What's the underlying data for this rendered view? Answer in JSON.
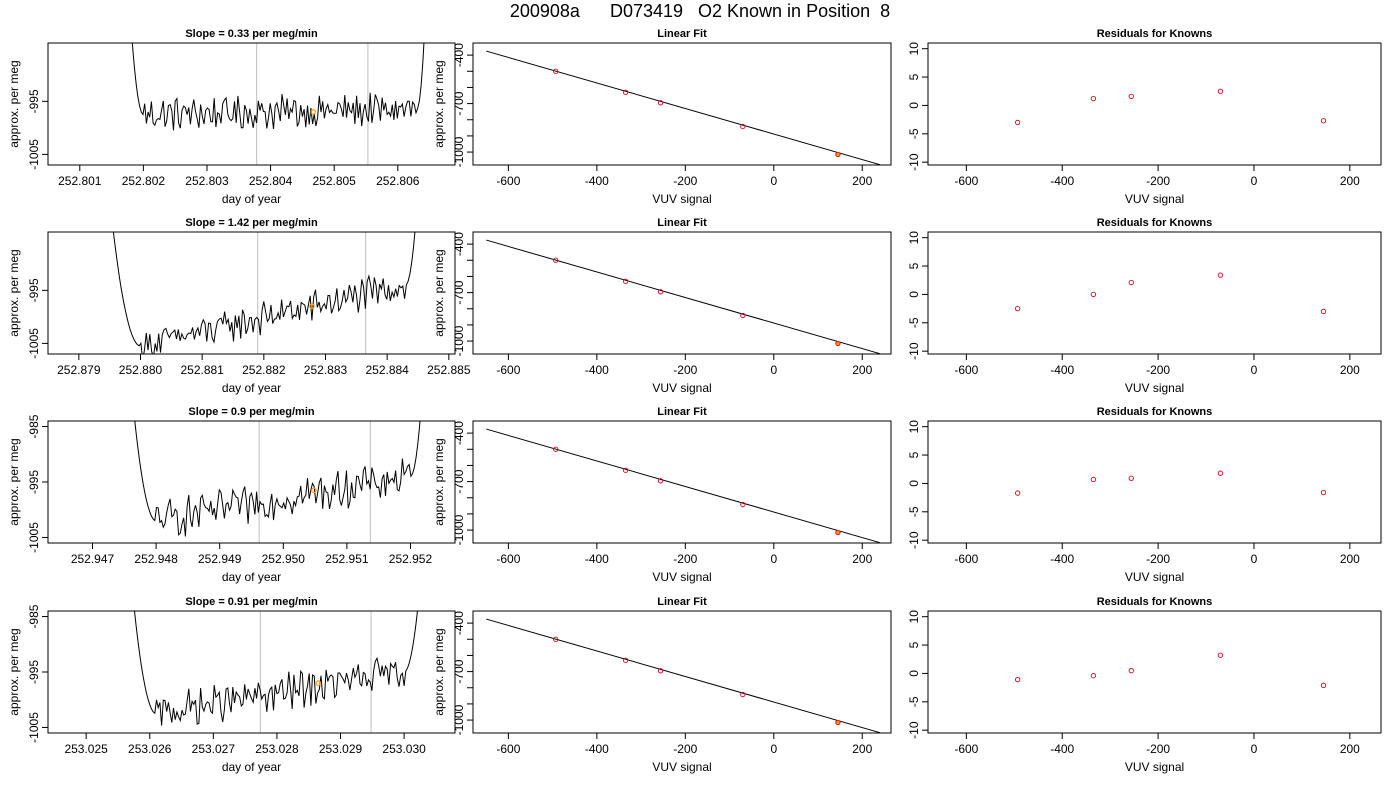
{
  "figure": {
    "title": "200908a      D073419   O2 Known in Position  8",
    "colors": {
      "trace": "#000000",
      "refline": "#c8c8c8",
      "point": "#e0001b",
      "highlight": "#ff9900",
      "axis": "#000000"
    }
  },
  "chart_data": [
    {
      "type": "line",
      "panel": "timeseries",
      "row": 0,
      "title": "Slope =  0.33  per meg/min",
      "xlabel": "day of year",
      "ylabel": "approx. per meg",
      "xlim": [
        252.8005,
        252.8069
      ],
      "ylim": [
        -1007,
        -984
      ],
      "xticks": [
        "252.801",
        "252.802",
        "252.803",
        "252.804",
        "252.805",
        "252.806"
      ],
      "xtick_values": [
        252.801,
        252.802,
        252.803,
        252.804,
        252.805,
        252.806
      ],
      "yticks": [
        "-995",
        "-1005"
      ],
      "ytick_values": [
        -995,
        -1005
      ],
      "trace_start": 252.8017,
      "trace_end": 252.8065,
      "flat_start": 252.802,
      "flat_end": 252.8063,
      "baseline_start": -997.5,
      "baseline_end": -996.5,
      "noise": 1.5,
      "vlines": [
        252.80378,
        252.80553
      ],
      "marker": {
        "x": 252.80467,
        "y": -997.0
      }
    },
    {
      "type": "scatter",
      "panel": "linear-fit",
      "row": 0,
      "title": "Linear Fit",
      "xlabel": "VUV signal",
      "ylabel": "approx. per meg",
      "xlim": [
        -680,
        265
      ],
      "ylim": [
        -1080,
        -325
      ],
      "xticks": [
        "-600",
        "-400",
        "-200",
        "0",
        "200"
      ],
      "xtick_values": [
        -600,
        -400,
        -200,
        0,
        200
      ],
      "yticks": [
        "-400",
        "-700",
        "-1000"
      ],
      "ytick_values": [
        -400,
        -700,
        -1000
      ],
      "points": [
        [
          -493,
          -500
        ],
        [
          -335,
          -630
        ],
        [
          -256,
          -695
        ],
        [
          -70,
          -842
        ],
        [
          145,
          -1015
        ]
      ],
      "highlight_index": 4,
      "fit_line": [
        [
          -650,
          -375
        ],
        [
          240,
          -1078
        ]
      ]
    },
    {
      "type": "scatter",
      "panel": "residuals",
      "row": 0,
      "title": "Residuals for Knowns",
      "xlabel": "VUV signal",
      "ylabel": "",
      "xlim": [
        -680,
        265
      ],
      "ylim": [
        -10.5,
        11
      ],
      "xticks": [
        "-600",
        "-400",
        "-200",
        "0",
        "200"
      ],
      "xtick_values": [
        -600,
        -400,
        -200,
        0,
        200
      ],
      "yticks": [
        "10",
        "5",
        "0",
        "-5",
        "-10"
      ],
      "ytick_values": [
        10,
        5,
        0,
        -5,
        -10
      ],
      "points": [
        [
          -493,
          -3.0
        ],
        [
          -335,
          1.2
        ],
        [
          -256,
          1.6
        ],
        [
          -70,
          2.5
        ],
        [
          145,
          -2.7
        ]
      ]
    },
    {
      "type": "line",
      "panel": "timeseries",
      "row": 1,
      "title": "Slope =  1.42  per meg/min",
      "xlabel": "day of year",
      "ylabel": "approx. per meg",
      "xlim": [
        252.8785,
        252.8851
      ],
      "ylim": [
        -1007,
        -984
      ],
      "xticks": [
        "252.879",
        "252.880",
        "252.881",
        "252.882",
        "252.883",
        "252.884",
        "252.885"
      ],
      "xtick_values": [
        252.879,
        252.88,
        252.881,
        252.882,
        252.883,
        252.884,
        252.885
      ],
      "yticks": [
        "-995",
        "-1005"
      ],
      "ytick_values": [
        -995,
        -1005
      ],
      "trace_start": 252.8794,
      "trace_end": 252.8846,
      "flat_start": 252.88,
      "flat_end": 252.8843,
      "baseline_start": -1005.5,
      "baseline_end": -994.0,
      "noise": 1.4,
      "vlines": [
        252.8819,
        252.88365
      ],
      "marker": {
        "x": 252.88278,
        "y": -998.0
      }
    },
    {
      "type": "scatter",
      "panel": "linear-fit",
      "row": 1,
      "title": "Linear Fit",
      "xlabel": "VUV signal",
      "ylabel": "approx. per meg",
      "xlim": [
        -680,
        265
      ],
      "ylim": [
        -1080,
        -325
      ],
      "xticks": [
        "-600",
        "-400",
        "-200",
        "0",
        "200"
      ],
      "xtick_values": [
        -600,
        -400,
        -200,
        0,
        200
      ],
      "yticks": [
        "-400",
        "-700",
        "-1000"
      ],
      "ytick_values": [
        -400,
        -700,
        -1000
      ],
      "points": [
        [
          -493,
          -500
        ],
        [
          -335,
          -630
        ],
        [
          -256,
          -695
        ],
        [
          -70,
          -842
        ],
        [
          145,
          -1015
        ]
      ],
      "highlight_index": 4,
      "fit_line": [
        [
          -650,
          -375
        ],
        [
          240,
          -1078
        ]
      ]
    },
    {
      "type": "scatter",
      "panel": "residuals",
      "row": 1,
      "title": "Residuals for Knowns",
      "xlabel": "VUV signal",
      "ylabel": "",
      "xlim": [
        -680,
        265
      ],
      "ylim": [
        -10.5,
        11
      ],
      "xticks": [
        "-600",
        "-400",
        "-200",
        "0",
        "200"
      ],
      "xtick_values": [
        -600,
        -400,
        -200,
        0,
        200
      ],
      "yticks": [
        "10",
        "5",
        "0",
        "-5",
        "-10"
      ],
      "ytick_values": [
        10,
        5,
        0,
        -5,
        -10
      ],
      "points": [
        [
          -493,
          -2.5
        ],
        [
          -335,
          0.0
        ],
        [
          -256,
          2.1
        ],
        [
          -70,
          3.4
        ],
        [
          145,
          -3.0
        ]
      ]
    },
    {
      "type": "line",
      "panel": "timeseries",
      "row": 2,
      "title": "Slope =  0.9  per meg/min",
      "xlabel": "day of year",
      "ylabel": "approx. per meg",
      "xlim": [
        252.9463,
        252.9527
      ],
      "ylim": [
        -1006,
        -984
      ],
      "xticks": [
        "252.947",
        "252.948",
        "252.949",
        "252.950",
        "252.951",
        "252.952"
      ],
      "xtick_values": [
        252.947,
        252.948,
        252.949,
        252.95,
        252.951,
        252.952
      ],
      "yticks": [
        "-985",
        "-995",
        "-1005"
      ],
      "ytick_values": [
        -985,
        -995,
        -1005
      ],
      "trace_start": 252.9475,
      "trace_end": 252.9523,
      "flat_start": 252.948,
      "flat_end": 252.952,
      "baseline_start": -1002.0,
      "baseline_end": -994.0,
      "noise": 1.6,
      "vlines": [
        252.94962,
        252.95137
      ],
      "marker": {
        "x": 252.95048,
        "y": -996.5
      }
    },
    {
      "type": "scatter",
      "panel": "linear-fit",
      "row": 2,
      "title": "Linear Fit",
      "xlabel": "VUV signal",
      "ylabel": "approx. per meg",
      "xlim": [
        -680,
        265
      ],
      "ylim": [
        -1080,
        -325
      ],
      "xticks": [
        "-600",
        "-400",
        "-200",
        "0",
        "200"
      ],
      "xtick_values": [
        -600,
        -400,
        -200,
        0,
        200
      ],
      "yticks": [
        "-400",
        "-700",
        "-1000"
      ],
      "ytick_values": [
        -400,
        -700,
        -1000
      ],
      "points": [
        [
          -493,
          -500
        ],
        [
          -335,
          -630
        ],
        [
          -256,
          -695
        ],
        [
          -70,
          -842
        ],
        [
          145,
          -1015
        ]
      ],
      "highlight_index": 4,
      "fit_line": [
        [
          -650,
          -375
        ],
        [
          240,
          -1078
        ]
      ]
    },
    {
      "type": "scatter",
      "panel": "residuals",
      "row": 2,
      "title": "Residuals for Knowns",
      "xlabel": "VUV signal",
      "ylabel": "",
      "xlim": [
        -680,
        265
      ],
      "ylim": [
        -10.5,
        11
      ],
      "xticks": [
        "-600",
        "-400",
        "-200",
        "0",
        "200"
      ],
      "xtick_values": [
        -600,
        -400,
        -200,
        0,
        200
      ],
      "yticks": [
        "10",
        "5",
        "0",
        "-5",
        "-10"
      ],
      "ytick_values": [
        10,
        5,
        0,
        -5,
        -10
      ],
      "points": [
        [
          -493,
          -1.7
        ],
        [
          -335,
          0.7
        ],
        [
          -256,
          0.9
        ],
        [
          -70,
          1.8
        ],
        [
          145,
          -1.6
        ]
      ]
    },
    {
      "type": "line",
      "panel": "timeseries",
      "row": 3,
      "title": "Slope =  0.91  per meg/min",
      "xlabel": "day of year",
      "ylabel": "approx. per meg",
      "xlim": [
        253.0244,
        253.0308
      ],
      "ylim": [
        -1006,
        -984
      ],
      "xticks": [
        "253.025",
        "253.026",
        "253.027",
        "253.028",
        "253.029",
        "253.030"
      ],
      "xtick_values": [
        253.025,
        253.026,
        253.027,
        253.028,
        253.029,
        253.03
      ],
      "yticks": [
        "-985",
        "-995",
        "-1005"
      ],
      "ytick_values": [
        -985,
        -995,
        -1005
      ],
      "trace_start": 253.0256,
      "trace_end": 253.0304,
      "flat_start": 253.0261,
      "flat_end": 253.03,
      "baseline_start": -1002.5,
      "baseline_end": -995.0,
      "noise": 1.5,
      "vlines": [
        253.02774,
        253.02948
      ],
      "marker": {
        "x": 253.02865,
        "y": -997.0
      }
    },
    {
      "type": "scatter",
      "panel": "linear-fit",
      "row": 3,
      "title": "Linear Fit",
      "xlabel": "VUV signal",
      "ylabel": "approx. per meg",
      "xlim": [
        -680,
        265
      ],
      "ylim": [
        -1080,
        -325
      ],
      "xticks": [
        "-600",
        "-400",
        "-200",
        "0",
        "200"
      ],
      "xtick_values": [
        -600,
        -400,
        -200,
        0,
        200
      ],
      "yticks": [
        "-400",
        "-700",
        "-1000"
      ],
      "ytick_values": [
        -400,
        -700,
        -1000
      ],
      "points": [
        [
          -493,
          -500
        ],
        [
          -335,
          -630
        ],
        [
          -256,
          -695
        ],
        [
          -70,
          -842
        ],
        [
          145,
          -1015
        ]
      ],
      "highlight_index": 4,
      "fit_line": [
        [
          -650,
          -375
        ],
        [
          240,
          -1078
        ]
      ]
    },
    {
      "type": "scatter",
      "panel": "residuals",
      "row": 3,
      "title": "Residuals for Knowns",
      "xlabel": "VUV signal",
      "ylabel": "",
      "xlim": [
        -680,
        265
      ],
      "ylim": [
        -10.5,
        11
      ],
      "xticks": [
        "-600",
        "-400",
        "-200",
        "0",
        "200"
      ],
      "xtick_values": [
        -600,
        -400,
        -200,
        0,
        200
      ],
      "yticks": [
        "10",
        "5",
        "0",
        "-5",
        "-10"
      ],
      "ytick_values": [
        10,
        5,
        0,
        -5,
        -10
      ],
      "points": [
        [
          -493,
          -1.1
        ],
        [
          -335,
          -0.4
        ],
        [
          -256,
          0.5
        ],
        [
          -70,
          3.2
        ],
        [
          145,
          -2.1
        ]
      ]
    }
  ]
}
